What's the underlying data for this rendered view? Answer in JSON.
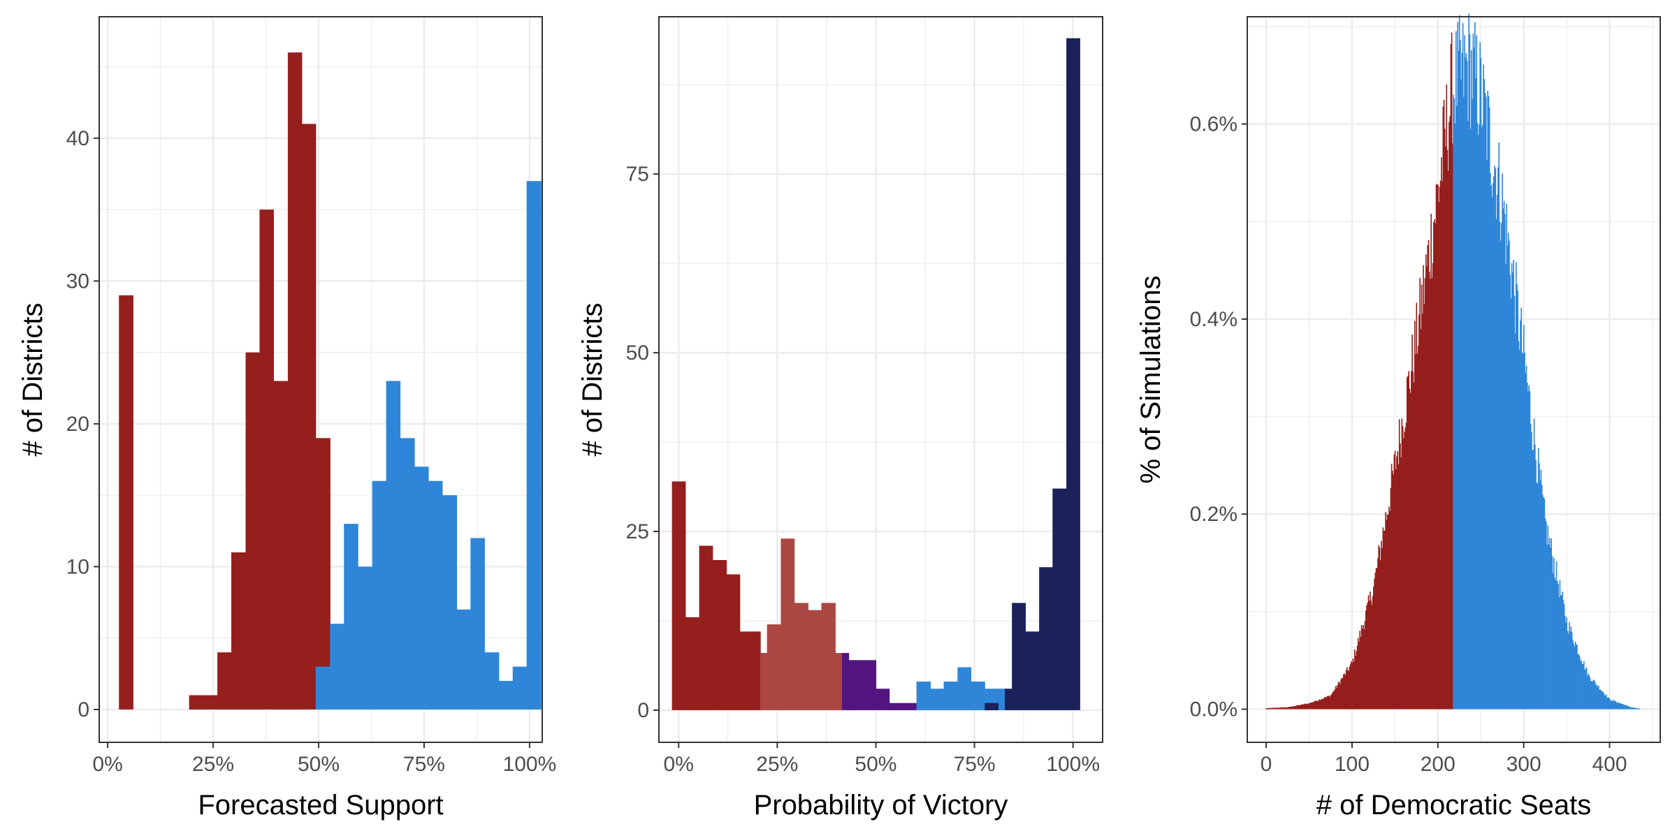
{
  "colors": {
    "red": "#951f1d",
    "light_red": "#ab4742",
    "purple": "#531680",
    "blue": "#2f86d8",
    "navy": "#1a2259",
    "grid": "#ebebeb",
    "panel_border": "#333333",
    "tick_text": "#4d4d4d"
  },
  "chart_data": [
    {
      "type": "bar",
      "subtype": "histogram",
      "xlabel": "Forecasted Support",
      "ylabel": "# of Districts",
      "xlim": [
        -0.02,
        1.03
      ],
      "ylim": [
        -2.3,
        48.5
      ],
      "x_ticks": [
        0,
        0.25,
        0.5,
        0.75,
        1.0
      ],
      "x_tick_labels": [
        "0%",
        "25%",
        "50%",
        "75%",
        "100%"
      ],
      "y_ticks": [
        0,
        10,
        20,
        30,
        40
      ],
      "y_tick_labels": [
        "0",
        "10",
        "20",
        "30",
        "40"
      ],
      "grid": true,
      "legend": "none",
      "bin_width": 0.0333,
      "series": [
        {
          "color": "red",
          "bins": [
            {
              "x0": 0.0267,
              "x1": 0.06,
              "count": 29
            },
            {
              "x0": 0.193,
              "x1": 0.227,
              "count": 1
            },
            {
              "x0": 0.227,
              "x1": 0.26,
              "count": 1
            },
            {
              "x0": 0.26,
              "x1": 0.293,
              "count": 4
            },
            {
              "x0": 0.293,
              "x1": 0.327,
              "count": 11
            },
            {
              "x0": 0.327,
              "x1": 0.36,
              "count": 25
            },
            {
              "x0": 0.36,
              "x1": 0.393,
              "count": 35
            },
            {
              "x0": 0.393,
              "x1": 0.427,
              "count": 23
            },
            {
              "x0": 0.427,
              "x1": 0.46,
              "count": 46
            },
            {
              "x0": 0.46,
              "x1": 0.493,
              "count": 41
            },
            {
              "x0": 0.493,
              "x1": 0.527,
              "count": 19
            }
          ]
        },
        {
          "color": "blue",
          "bins": [
            {
              "x0": 0.493,
              "x1": 0.527,
              "count": 3
            },
            {
              "x0": 0.527,
              "x1": 0.56,
              "count": 6
            },
            {
              "x0": 0.56,
              "x1": 0.593,
              "count": 13
            },
            {
              "x0": 0.593,
              "x1": 0.627,
              "count": 10
            },
            {
              "x0": 0.627,
              "x1": 0.66,
              "count": 16
            },
            {
              "x0": 0.66,
              "x1": 0.693,
              "count": 23
            },
            {
              "x0": 0.693,
              "x1": 0.727,
              "count": 19
            },
            {
              "x0": 0.727,
              "x1": 0.76,
              "count": 17
            },
            {
              "x0": 0.76,
              "x1": 0.793,
              "count": 16
            },
            {
              "x0": 0.793,
              "x1": 0.827,
              "count": 15
            },
            {
              "x0": 0.827,
              "x1": 0.86,
              "count": 7
            },
            {
              "x0": 0.86,
              "x1": 0.893,
              "count": 12
            },
            {
              "x0": 0.893,
              "x1": 0.927,
              "count": 4
            },
            {
              "x0": 0.927,
              "x1": 0.96,
              "count": 2
            },
            {
              "x0": 0.96,
              "x1": 0.993,
              "count": 3
            },
            {
              "x0": 0.993,
              "x1": 1.027,
              "count": 37
            }
          ]
        }
      ]
    },
    {
      "type": "bar",
      "subtype": "histogram",
      "xlabel": "Probability of Victory",
      "ylabel": "# of Districts",
      "xlim": [
        -0.05,
        1.075
      ],
      "ylim": [
        -4.5,
        97
      ],
      "x_ticks": [
        0,
        0.25,
        0.5,
        0.75,
        1.0
      ],
      "x_tick_labels": [
        "0%",
        "25%",
        "50%",
        "75%",
        "100%"
      ],
      "y_ticks": [
        0,
        25,
        50,
        75
      ],
      "y_tick_labels": [
        "0",
        "25",
        "50",
        "75"
      ],
      "grid": true,
      "legend": "none",
      "bin_width": 0.0345,
      "series": [
        {
          "color": "red",
          "bins": [
            {
              "x0": -0.017,
              "x1": 0.017,
              "count": 32
            },
            {
              "x0": 0.017,
              "x1": 0.052,
              "count": 13
            },
            {
              "x0": 0.052,
              "x1": 0.086,
              "count": 23
            },
            {
              "x0": 0.086,
              "x1": 0.121,
              "count": 21
            },
            {
              "x0": 0.121,
              "x1": 0.155,
              "count": 19
            },
            {
              "x0": 0.155,
              "x1": 0.19,
              "count": 11
            },
            {
              "x0": 0.19,
              "x1": 0.207,
              "count": 11
            }
          ]
        },
        {
          "color": "light_red",
          "bins": [
            {
              "x0": 0.207,
              "x1": 0.224,
              "count": 8
            },
            {
              "x0": 0.224,
              "x1": 0.259,
              "count": 12
            },
            {
              "x0": 0.259,
              "x1": 0.293,
              "count": 24
            },
            {
              "x0": 0.293,
              "x1": 0.328,
              "count": 15
            },
            {
              "x0": 0.328,
              "x1": 0.362,
              "count": 14
            },
            {
              "x0": 0.362,
              "x1": 0.397,
              "count": 15
            },
            {
              "x0": 0.397,
              "x1": 0.414,
              "count": 8
            }
          ]
        },
        {
          "color": "purple",
          "bins": [
            {
              "x0": 0.414,
              "x1": 0.431,
              "count": 8
            },
            {
              "x0": 0.431,
              "x1": 0.466,
              "count": 7
            },
            {
              "x0": 0.466,
              "x1": 0.5,
              "count": 7
            },
            {
              "x0": 0.5,
              "x1": 0.534,
              "count": 3
            },
            {
              "x0": 0.534,
              "x1": 0.569,
              "count": 1
            },
            {
              "x0": 0.569,
              "x1": 0.603,
              "count": 1
            }
          ]
        },
        {
          "color": "blue",
          "bins": [
            {
              "x0": 0.603,
              "x1": 0.638,
              "count": 4
            },
            {
              "x0": 0.638,
              "x1": 0.672,
              "count": 3
            },
            {
              "x0": 0.672,
              "x1": 0.707,
              "count": 4
            },
            {
              "x0": 0.707,
              "x1": 0.741,
              "count": 6
            },
            {
              "x0": 0.741,
              "x1": 0.776,
              "count": 4
            },
            {
              "x0": 0.776,
              "x1": 0.81,
              "count": 3
            },
            {
              "x0": 0.81,
              "x1": 0.827,
              "count": 3
            }
          ]
        },
        {
          "color": "navy",
          "bins": [
            {
              "x0": 0.776,
              "x1": 0.81,
              "count": 1
            },
            {
              "x0": 0.827,
              "x1": 0.845,
              "count": 3
            },
            {
              "x0": 0.845,
              "x1": 0.879,
              "count": 15
            },
            {
              "x0": 0.879,
              "x1": 0.914,
              "count": 11
            },
            {
              "x0": 0.914,
              "x1": 0.948,
              "count": 20
            },
            {
              "x0": 0.948,
              "x1": 0.983,
              "count": 31
            },
            {
              "x0": 0.983,
              "x1": 1.017,
              "count": 94
            }
          ]
        }
      ]
    },
    {
      "type": "bar",
      "subtype": "histogram",
      "xlabel": "# of Democratic Seats",
      "ylabel": "% of Simulations",
      "xlim": [
        -22,
        459
      ],
      "ylim": [
        -0.00034,
        0.0071
      ],
      "x_ticks": [
        0,
        100,
        200,
        300,
        400
      ],
      "x_tick_labels": [
        "0",
        "100",
        "200",
        "300",
        "400"
      ],
      "y_ticks": [
        0,
        0.002,
        0.004,
        0.006
      ],
      "y_tick_labels": [
        "0.0%",
        "0.2%",
        "0.4%",
        "0.6%"
      ],
      "grid": true,
      "legend": "none",
      "split_at": 218,
      "series": [
        {
          "color": "red",
          "name": "",
          "x_range": [
            0,
            217
          ]
        },
        {
          "color": "blue",
          "name": "",
          "x_range": [
            218,
            435
          ]
        }
      ],
      "distribution": {
        "approx_shape": "left-skewed, peak near 237 seats",
        "points": [
          [
            0,
            1e-05
          ],
          [
            25,
            2e-05
          ],
          [
            50,
            6e-05
          ],
          [
            75,
            0.00014
          ],
          [
            100,
            0.00047
          ],
          [
            125,
            0.00125
          ],
          [
            150,
            0.0025
          ],
          [
            175,
            0.0038
          ],
          [
            200,
            0.0053
          ],
          [
            217,
            0.0064
          ],
          [
            237,
            0.0066
          ],
          [
            250,
            0.0063
          ],
          [
            275,
            0.0052
          ],
          [
            300,
            0.0036
          ],
          [
            325,
            0.0019
          ],
          [
            350,
            0.0009
          ],
          [
            375,
            0.00035
          ],
          [
            400,
            0.0001
          ],
          [
            425,
            2e-05
          ],
          [
            435,
            5e-06
          ]
        ]
      }
    }
  ]
}
